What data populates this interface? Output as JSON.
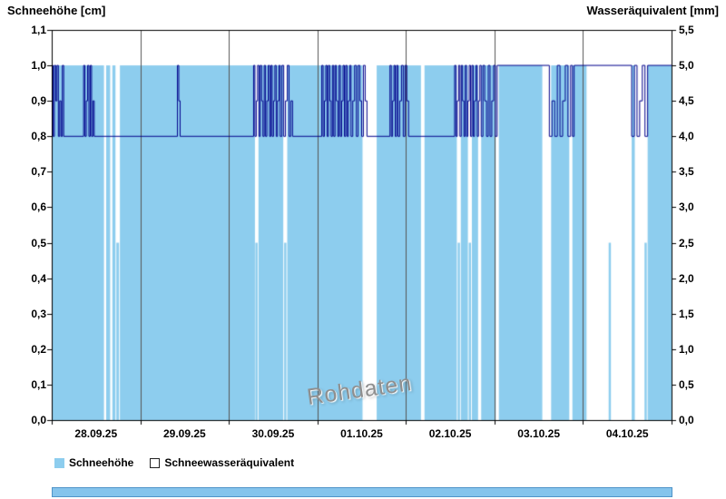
{
  "legend": {
    "items": [
      {
        "label": "Schneehöhe"
      },
      {
        "label": "Schneewasseräquivalent"
      }
    ]
  },
  "ui": {
    "scrollbar_color": "#85C4EC"
  },
  "chart_data": {
    "type": "mixed",
    "watermark": "Rohdaten",
    "grid": "vertical-only",
    "legend_position": "bottom-left",
    "left_axis": {
      "label": "Schneehöhe [cm]",
      "min": 0.0,
      "max": 1.1,
      "step": 0.1,
      "tick_labels": [
        "1,1",
        "1,0",
        "0,9",
        "0,8",
        "0,7",
        "0,6",
        "0,5",
        "0,4",
        "0,3",
        "0,2",
        "0,1",
        "0,0"
      ]
    },
    "right_axis": {
      "label": "Wasseräquivalent [mm]",
      "min": 0.0,
      "max": 5.5,
      "step": 0.5,
      "tick_labels": [
        "5,5",
        "5,0",
        "4,5",
        "4,0",
        "3,5",
        "3,0",
        "2,5",
        "2,0",
        "1,5",
        "1,0",
        "0,5",
        "0,0"
      ]
    },
    "x_axis": {
      "days": 7,
      "tick_labels": [
        "28.09.25",
        "29.09.25",
        "30.09.25",
        "01.10.25",
        "02.10.25",
        "03.10.25",
        "04.10.25"
      ]
    },
    "series": [
      {
        "name": "Schneehöhe",
        "type": "bar",
        "axis": "left",
        "unit": "cm",
        "color": "#8DCDEE",
        "segments": [
          {
            "x0": 0.0,
            "x1": 0.59,
            "h": 1.0
          },
          {
            "x0": 0.615,
            "x1": 0.66,
            "h": 1.0
          },
          {
            "x0": 0.685,
            "x1": 0.72,
            "h": 1.0
          },
          {
            "x0": 0.73,
            "x1": 0.76,
            "h": 0.5
          },
          {
            "x0": 0.77,
            "x1": 2.295,
            "h": 1.0
          },
          {
            "x0": 2.3,
            "x1": 2.325,
            "h": 0.5
          },
          {
            "x0": 2.335,
            "x1": 2.615,
            "h": 1.0
          },
          {
            "x0": 2.625,
            "x1": 2.65,
            "h": 0.5
          },
          {
            "x0": 2.66,
            "x1": 3.51,
            "h": 1.0
          },
          {
            "x0": 3.67,
            "x1": 4.17,
            "h": 1.0
          },
          {
            "x0": 4.21,
            "x1": 4.575,
            "h": 1.0
          },
          {
            "x0": 4.585,
            "x1": 4.61,
            "h": 0.5
          },
          {
            "x0": 4.62,
            "x1": 4.7,
            "h": 1.0
          },
          {
            "x0": 4.71,
            "x1": 4.735,
            "h": 0.5
          },
          {
            "x0": 4.745,
            "x1": 4.815,
            "h": 1.0
          },
          {
            "x0": 4.85,
            "x1": 5.015,
            "h": 1.0
          },
          {
            "x0": 5.05,
            "x1": 5.54,
            "h": 1.0
          },
          {
            "x0": 5.64,
            "x1": 5.845,
            "h": 1.0
          },
          {
            "x0": 5.88,
            "x1": 6.04,
            "h": 1.0
          },
          {
            "x0": 6.29,
            "x1": 6.315,
            "h": 0.5
          },
          {
            "x0": 6.55,
            "x1": 6.585,
            "h": 1.0
          },
          {
            "x0": 6.695,
            "x1": 6.72,
            "h": 0.5
          },
          {
            "x0": 6.73,
            "x1": 7.0,
            "h": 1.0
          }
        ]
      },
      {
        "name": "Schneewasseräquivalent",
        "type": "step-line",
        "axis": "right",
        "unit": "mm",
        "color": "#00008B",
        "points": [
          [
            0.0,
            5.0
          ],
          [
            0.015,
            4.0
          ],
          [
            0.03,
            5.0
          ],
          [
            0.045,
            4.5
          ],
          [
            0.06,
            5.0
          ],
          [
            0.075,
            4.0
          ],
          [
            0.09,
            4.5
          ],
          [
            0.105,
            4.0
          ],
          [
            0.12,
            5.0
          ],
          [
            0.135,
            4.0
          ],
          [
            0.36,
            5.0
          ],
          [
            0.375,
            4.0
          ],
          [
            0.39,
            4.5
          ],
          [
            0.405,
            5.0
          ],
          [
            0.42,
            4.0
          ],
          [
            0.435,
            5.0
          ],
          [
            0.45,
            4.0
          ],
          [
            0.465,
            4.5
          ],
          [
            0.48,
            4.0
          ],
          [
            1.42,
            5.0
          ],
          [
            1.435,
            4.5
          ],
          [
            1.45,
            4.0
          ],
          [
            2.28,
            5.0
          ],
          [
            2.295,
            4.0
          ],
          [
            2.31,
            4.5
          ],
          [
            2.325,
            5.0
          ],
          [
            2.34,
            4.0
          ],
          [
            2.355,
            5.0
          ],
          [
            2.37,
            4.5
          ],
          [
            2.385,
            4.0
          ],
          [
            2.4,
            5.0
          ],
          [
            2.415,
            4.0
          ],
          [
            2.43,
            4.5
          ],
          [
            2.445,
            5.0
          ],
          [
            2.46,
            4.0
          ],
          [
            2.475,
            5.0
          ],
          [
            2.49,
            4.0
          ],
          [
            2.505,
            4.5
          ],
          [
            2.52,
            5.0
          ],
          [
            2.535,
            4.0
          ],
          [
            2.55,
            4.5
          ],
          [
            2.565,
            5.0
          ],
          [
            2.58,
            4.0
          ],
          [
            2.6,
            5.0
          ],
          [
            2.62,
            4.0
          ],
          [
            2.64,
            4.5
          ],
          [
            2.66,
            5.0
          ],
          [
            2.68,
            4.0
          ],
          [
            2.7,
            4.5
          ],
          [
            2.72,
            4.0
          ],
          [
            3.05,
            5.0
          ],
          [
            3.065,
            4.0
          ],
          [
            3.08,
            4.5
          ],
          [
            3.095,
            5.0
          ],
          [
            3.11,
            4.0
          ],
          [
            3.125,
            5.0
          ],
          [
            3.14,
            4.5
          ],
          [
            3.155,
            4.0
          ],
          [
            3.17,
            5.0
          ],
          [
            3.185,
            4.0
          ],
          [
            3.2,
            5.0
          ],
          [
            3.215,
            4.5
          ],
          [
            3.23,
            4.0
          ],
          [
            3.245,
            5.0
          ],
          [
            3.26,
            4.0
          ],
          [
            3.275,
            4.5
          ],
          [
            3.29,
            5.0
          ],
          [
            3.305,
            4.0
          ],
          [
            3.32,
            5.0
          ],
          [
            3.335,
            4.0
          ],
          [
            3.35,
            4.5
          ],
          [
            3.365,
            5.0
          ],
          [
            3.38,
            4.0
          ],
          [
            3.4,
            4.5
          ],
          [
            3.42,
            5.0
          ],
          [
            3.44,
            4.0
          ],
          [
            3.46,
            5.0
          ],
          [
            3.48,
            4.5
          ],
          [
            3.5,
            4.0
          ],
          [
            3.52,
            5.0
          ],
          [
            3.54,
            4.5
          ],
          [
            3.56,
            4.0
          ],
          [
            3.82,
            5.0
          ],
          [
            3.835,
            4.0
          ],
          [
            3.85,
            4.5
          ],
          [
            3.865,
            5.0
          ],
          [
            3.88,
            4.0
          ],
          [
            3.895,
            5.0
          ],
          [
            3.91,
            4.0
          ],
          [
            3.93,
            4.5
          ],
          [
            3.95,
            5.0
          ],
          [
            3.97,
            4.0
          ],
          [
            3.99,
            5.0
          ],
          [
            4.01,
            4.5
          ],
          [
            4.03,
            4.0
          ],
          [
            4.55,
            5.0
          ],
          [
            4.565,
            4.0
          ],
          [
            4.58,
            4.5
          ],
          [
            4.595,
            5.0
          ],
          [
            4.61,
            4.0
          ],
          [
            4.625,
            5.0
          ],
          [
            4.64,
            4.5
          ],
          [
            4.655,
            4.0
          ],
          [
            4.67,
            5.0
          ],
          [
            4.685,
            4.0
          ],
          [
            4.7,
            4.5
          ],
          [
            4.715,
            5.0
          ],
          [
            4.73,
            4.0
          ],
          [
            4.745,
            5.0
          ],
          [
            4.76,
            4.0
          ],
          [
            4.775,
            4.5
          ],
          [
            4.79,
            5.0
          ],
          [
            4.805,
            4.0
          ],
          [
            4.82,
            4.5
          ],
          [
            4.835,
            5.0
          ],
          [
            4.85,
            4.0
          ],
          [
            4.87,
            5.0
          ],
          [
            4.89,
            4.5
          ],
          [
            4.91,
            4.0
          ],
          [
            4.93,
            5.0
          ],
          [
            4.95,
            4.0
          ],
          [
            4.97,
            4.5
          ],
          [
            4.99,
            5.0
          ],
          [
            5.01,
            4.0
          ],
          [
            5.03,
            5.0
          ],
          [
            5.62,
            4.0
          ],
          [
            5.65,
            4.5
          ],
          [
            5.68,
            4.0
          ],
          [
            5.71,
            5.0
          ],
          [
            5.74,
            4.0
          ],
          [
            5.77,
            4.5
          ],
          [
            5.8,
            5.0
          ],
          [
            5.83,
            4.0
          ],
          [
            5.86,
            5.0
          ],
          [
            5.88,
            4.0
          ],
          [
            5.9,
            5.0
          ],
          [
            6.55,
            4.0
          ],
          [
            6.58,
            5.0
          ],
          [
            6.61,
            4.0
          ],
          [
            6.64,
            4.5
          ],
          [
            6.67,
            5.0
          ],
          [
            6.7,
            4.0
          ],
          [
            6.73,
            5.0
          ],
          [
            7.0,
            5.0
          ]
        ]
      }
    ]
  }
}
